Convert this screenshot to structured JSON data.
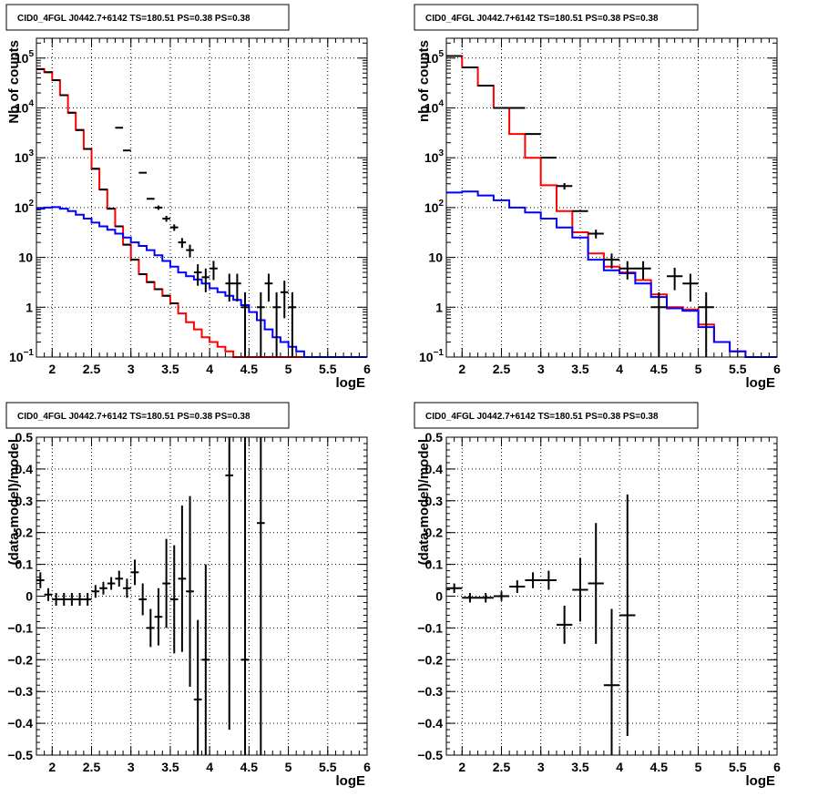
{
  "colors": {
    "data": "#000000",
    "total_model": "#ff0000",
    "background_model": "#0000ff"
  },
  "chart_data": [
    {
      "type": "line",
      "title": "CID0_4FGL J0442.7+6142 TS=180.51 PS=0.38 PS=0.38",
      "xlabel": "logE",
      "ylabel": "Nb of counts",
      "xlim": [
        1.8,
        6.0
      ],
      "ylim": [
        0.1,
        250000
      ],
      "ylog": true,
      "xticks": [
        {
          "v": 2,
          "l": "2"
        },
        {
          "v": 2.5,
          "l": "2.5"
        },
        {
          "v": 3,
          "l": "3"
        },
        {
          "v": 3.5,
          "l": "3.5"
        },
        {
          "v": 4,
          "l": "4"
        },
        {
          "v": 4.5,
          "l": "4.5"
        },
        {
          "v": 5,
          "l": "5"
        },
        {
          "v": 5.5,
          "l": "5.5"
        },
        {
          "v": 6,
          "l": "6"
        }
      ],
      "yticks": [
        {
          "v": 0.1,
          "b": "10",
          "e": "−1"
        },
        {
          "v": 1,
          "b": "1",
          "e": ""
        },
        {
          "v": 10,
          "b": "10",
          "e": ""
        },
        {
          "v": 100,
          "b": "10",
          "e": "2"
        },
        {
          "v": 1000,
          "b": "10",
          "e": "3"
        },
        {
          "v": 10000,
          "b": "10",
          "e": "4"
        },
        {
          "v": 100000,
          "b": "10",
          "e": "5"
        }
      ],
      "grid": true,
      "bins": {
        "start": 1.8,
        "width": 0.1
      },
      "series": [
        {
          "kind": "histogram",
          "color": "#ff0000",
          "values": [
            60000,
            52000,
            36000,
            18000,
            8000,
            3600,
            1500,
            600,
            230,
            95,
            42,
            18,
            9,
            4.6,
            3.2,
            2.3,
            1.7,
            1.2,
            0.75,
            0.5,
            0.36,
            0.25,
            0.2,
            0.16,
            0.13,
            0.1,
            0.1,
            0.1,
            0.1,
            0.1,
            0.1,
            0.1,
            0.1,
            0.1,
            0.1,
            0.1,
            0.1,
            0.1,
            0.1,
            0.1,
            0.1,
            0.1
          ]
        },
        {
          "kind": "histogram",
          "color": "#0000ff",
          "values": [
            95,
            100,
            102,
            95,
            85,
            72,
            60,
            50,
            42,
            36,
            30,
            25,
            20,
            17,
            14,
            11,
            8.5,
            6.5,
            5,
            4.2,
            3.6,
            3,
            2.4,
            2,
            1.7,
            1.4,
            1.1,
            0.8,
            0.55,
            0.36,
            0.25,
            0.2,
            0.16,
            0.13,
            0.1,
            0.1,
            0.1,
            0.1,
            0.1,
            0.1,
            0.1,
            0.1
          ]
        },
        {
          "kind": "points",
          "color": "#000000",
          "xerr": 0.05,
          "points": [
            [
              1.85,
              60000,
              0
            ],
            [
              1.95,
              52000,
              0
            ],
            [
              2.05,
              36000,
              0
            ],
            [
              2.15,
              18000,
              0
            ],
            [
              2.25,
              8000,
              0
            ],
            [
              2.35,
              3600,
              0
            ],
            [
              2.45,
              1500,
              0
            ],
            [
              2.55,
              600,
              0
            ],
            [
              2.65,
              230,
              0
            ],
            [
              2.75,
              95,
              0
            ],
            [
              2.85,
              42,
              0
            ],
            [
              2.95,
              18,
              0
            ],
            [
              3.05,
              9,
              0
            ],
            [
              3.15,
              4.6,
              0
            ],
            [
              3.25,
              3.2,
              0
            ],
            [
              3.35,
              2.3,
              0
            ],
            [
              3.45,
              1.7,
              0
            ],
            [
              3.55,
              1.2,
              0
            ],
            [
              2.85,
              4000,
              0
            ],
            [
              2.95,
              1400,
              0
            ],
            [
              3.15,
              500,
              0
            ],
            [
              3.25,
              150,
              0
            ],
            [
              3.35,
              100,
              10
            ],
            [
              3.45,
              60,
              8
            ],
            [
              3.55,
              40,
              6
            ],
            [
              3.65,
              20,
              4.5
            ],
            [
              3.75,
              14,
              4
            ],
            [
              3.85,
              5,
              2.3
            ],
            [
              3.95,
              4,
              2
            ],
            [
              4.05,
              6,
              2.5
            ],
            [
              4.25,
              3,
              1.7
            ],
            [
              4.35,
              3,
              1.7
            ],
            [
              4.45,
              1,
              1
            ],
            [
              4.65,
              1,
              1
            ],
            [
              4.75,
              3,
              1.7
            ],
            [
              4.85,
              1,
              1
            ],
            [
              4.95,
              2,
              1.4
            ],
            [
              5.05,
              1,
              1
            ]
          ]
        }
      ]
    },
    {
      "type": "line",
      "title": "CID0_4FGL J0442.7+6142 TS=180.51 PS=0.38 PS=0.38",
      "xlabel": "logE",
      "ylabel": "nb of counts",
      "xlim": [
        1.8,
        6.0
      ],
      "ylim": [
        0.1,
        250000
      ],
      "ylog": true,
      "xticks": [
        {
          "v": 2,
          "l": "2"
        },
        {
          "v": 2.5,
          "l": "2.5"
        },
        {
          "v": 3,
          "l": "3"
        },
        {
          "v": 3.5,
          "l": "3.5"
        },
        {
          "v": 4,
          "l": "4"
        },
        {
          "v": 4.5,
          "l": "4.5"
        },
        {
          "v": 5,
          "l": "5"
        },
        {
          "v": 5.5,
          "l": "5.5"
        },
        {
          "v": 6,
          "l": "6"
        }
      ],
      "yticks": [
        {
          "v": 0.1,
          "b": "10",
          "e": "−1"
        },
        {
          "v": 1,
          "b": "1",
          "e": ""
        },
        {
          "v": 10,
          "b": "10",
          "e": ""
        },
        {
          "v": 100,
          "b": "10",
          "e": "2"
        },
        {
          "v": 1000,
          "b": "10",
          "e": "3"
        },
        {
          "v": 10000,
          "b": "10",
          "e": "4"
        },
        {
          "v": 100000,
          "b": "10",
          "e": "5"
        }
      ],
      "grid": true,
      "bins": {
        "start": 1.8,
        "width": 0.2
      },
      "series": [
        {
          "kind": "histogram",
          "color": "#ff0000",
          "values": [
            110000,
            65000,
            28000,
            10000,
            3000,
            1000,
            280,
            85,
            32,
            12,
            6.5,
            5,
            3.5,
            1.8,
            1,
            0.9,
            0.45,
            0.2,
            0.13,
            0.1,
            0.1
          ]
        },
        {
          "kind": "histogram",
          "color": "#0000ff",
          "values": [
            200,
            210,
            175,
            140,
            100,
            80,
            60,
            40,
            25,
            9,
            5.5,
            4.8,
            3,
            1.6,
            0.95,
            0.85,
            0.4,
            0.2,
            0.13,
            0.1,
            0.1
          ]
        },
        {
          "kind": "points",
          "color": "#000000",
          "xerr": 0.1,
          "points": [
            [
              1.9,
              110000,
              0
            ],
            [
              2.1,
              65000,
              0
            ],
            [
              2.3,
              28000,
              0
            ],
            [
              2.5,
              10000,
              0
            ],
            [
              2.7,
              10000,
              0
            ],
            [
              2.9,
              3000,
              0
            ],
            [
              3.1,
              1000,
              0
            ],
            [
              3.3,
              270,
              40
            ],
            [
              3.5,
              85,
              0
            ],
            [
              3.7,
              30,
              6
            ],
            [
              3.9,
              9,
              3
            ],
            [
              4.1,
              6,
              2.4
            ],
            [
              4.3,
              6,
              2.4
            ],
            [
              4.5,
              1,
              1
            ],
            [
              4.7,
              4.2,
              2
            ],
            [
              4.9,
              3,
              1.7
            ],
            [
              5.1,
              1,
              1
            ]
          ]
        }
      ]
    },
    {
      "type": "scatter",
      "title": "CID0_4FGL J0442.7+6142 TS=180.51 PS=0.38 PS=0.38",
      "xlabel": "logE",
      "ylabel": "(data-model)/model",
      "xlim": [
        1.8,
        6.0
      ],
      "ylim": [
        -0.5,
        0.5
      ],
      "ylog": false,
      "xticks": [
        {
          "v": 2,
          "l": "2"
        },
        {
          "v": 2.5,
          "l": "2.5"
        },
        {
          "v": 3,
          "l": "3"
        },
        {
          "v": 3.5,
          "l": "3.5"
        },
        {
          "v": 4,
          "l": "4"
        },
        {
          "v": 4.5,
          "l": "4.5"
        },
        {
          "v": 5,
          "l": "5"
        },
        {
          "v": 5.5,
          "l": "5.5"
        },
        {
          "v": 6,
          "l": "6"
        }
      ],
      "yticks": [
        {
          "v": -0.5,
          "l": "−0.5"
        },
        {
          "v": -0.4,
          "l": "−0.4"
        },
        {
          "v": -0.3,
          "l": "−0.3"
        },
        {
          "v": -0.2,
          "l": "−0.2"
        },
        {
          "v": -0.1,
          "l": "−0.1"
        },
        {
          "v": 0,
          "l": "0"
        },
        {
          "v": 0.1,
          "l": "0.1"
        },
        {
          "v": 0.2,
          "l": "0.2"
        },
        {
          "v": 0.3,
          "l": "0.3"
        },
        {
          "v": 0.4,
          "l": "0.4"
        },
        {
          "v": 0.5,
          "l": "0.5"
        }
      ],
      "grid": true,
      "series": [
        {
          "kind": "points",
          "color": "#000000",
          "xerr": 0.05,
          "points": [
            [
              1.85,
              0.05,
              0.025
            ],
            [
              1.95,
              0.005,
              0.02
            ],
            [
              2.05,
              -0.01,
              0.02
            ],
            [
              2.15,
              -0.01,
              0.02
            ],
            [
              2.25,
              -0.01,
              0.02
            ],
            [
              2.35,
              -0.01,
              0.02
            ],
            [
              2.45,
              -0.01,
              0.02
            ],
            [
              2.55,
              0.015,
              0.02
            ],
            [
              2.65,
              0.025,
              0.02
            ],
            [
              2.75,
              0.04,
              0.02
            ],
            [
              2.85,
              0.055,
              0.025
            ],
            [
              2.95,
              0.025,
              0.03
            ],
            [
              3.05,
              0.075,
              0.04
            ],
            [
              3.15,
              -0.01,
              0.05
            ],
            [
              3.25,
              -0.1,
              0.06
            ],
            [
              3.35,
              -0.065,
              0.09
            ],
            [
              3.45,
              0.04,
              0.14
            ],
            [
              3.55,
              -0.01,
              0.17
            ],
            [
              3.65,
              0.055,
              0.23
            ],
            [
              3.75,
              0.015,
              0.3
            ],
            [
              3.85,
              -0.325,
              0.25
            ],
            [
              3.95,
              -0.2,
              0.3
            ],
            [
              4.25,
              0.38,
              0.8
            ],
            [
              4.45,
              -0.2,
              0.8
            ],
            [
              4.65,
              0.23,
              0.8
            ]
          ]
        }
      ]
    },
    {
      "type": "scatter",
      "title": "CID0_4FGL J0442.7+6142 TS=180.51 PS=0.38 PS=0.38",
      "xlabel": "logE",
      "ylabel": "(data-model)/model",
      "xlim": [
        1.8,
        6.0
      ],
      "ylim": [
        -0.5,
        0.5
      ],
      "ylog": false,
      "xticks": [
        {
          "v": 2,
          "l": "2"
        },
        {
          "v": 2.5,
          "l": "2.5"
        },
        {
          "v": 3,
          "l": "3"
        },
        {
          "v": 3.5,
          "l": "3.5"
        },
        {
          "v": 4,
          "l": "4"
        },
        {
          "v": 4.5,
          "l": "4.5"
        },
        {
          "v": 5,
          "l": "5"
        },
        {
          "v": 5.5,
          "l": "5.5"
        },
        {
          "v": 6,
          "l": "6"
        }
      ],
      "yticks": [
        {
          "v": -0.5,
          "l": "−0.5"
        },
        {
          "v": -0.4,
          "l": "−0.4"
        },
        {
          "v": -0.3,
          "l": "−0.3"
        },
        {
          "v": -0.2,
          "l": "−0.2"
        },
        {
          "v": -0.1,
          "l": "−0.1"
        },
        {
          "v": 0,
          "l": "0"
        },
        {
          "v": 0.1,
          "l": "0.1"
        },
        {
          "v": 0.2,
          "l": "0.2"
        },
        {
          "v": 0.3,
          "l": "0.3"
        },
        {
          "v": 0.4,
          "l": "0.4"
        },
        {
          "v": 0.5,
          "l": "0.5"
        }
      ],
      "grid": true,
      "series": [
        {
          "kind": "points",
          "color": "#000000",
          "xerr": 0.1,
          "points": [
            [
              1.9,
              0.025,
              0.015
            ],
            [
              2.1,
              -0.005,
              0.015
            ],
            [
              2.3,
              -0.005,
              0.015
            ],
            [
              2.5,
              0.0,
              0.015
            ],
            [
              2.7,
              0.03,
              0.02
            ],
            [
              2.9,
              0.05,
              0.025
            ],
            [
              3.1,
              0.05,
              0.03
            ],
            [
              3.3,
              -0.09,
              0.06
            ],
            [
              3.5,
              0.02,
              0.1
            ],
            [
              3.7,
              0.04,
              0.19
            ],
            [
              3.9,
              -0.28,
              0.24
            ],
            [
              4.1,
              -0.06,
              0.38
            ]
          ]
        }
      ]
    }
  ]
}
